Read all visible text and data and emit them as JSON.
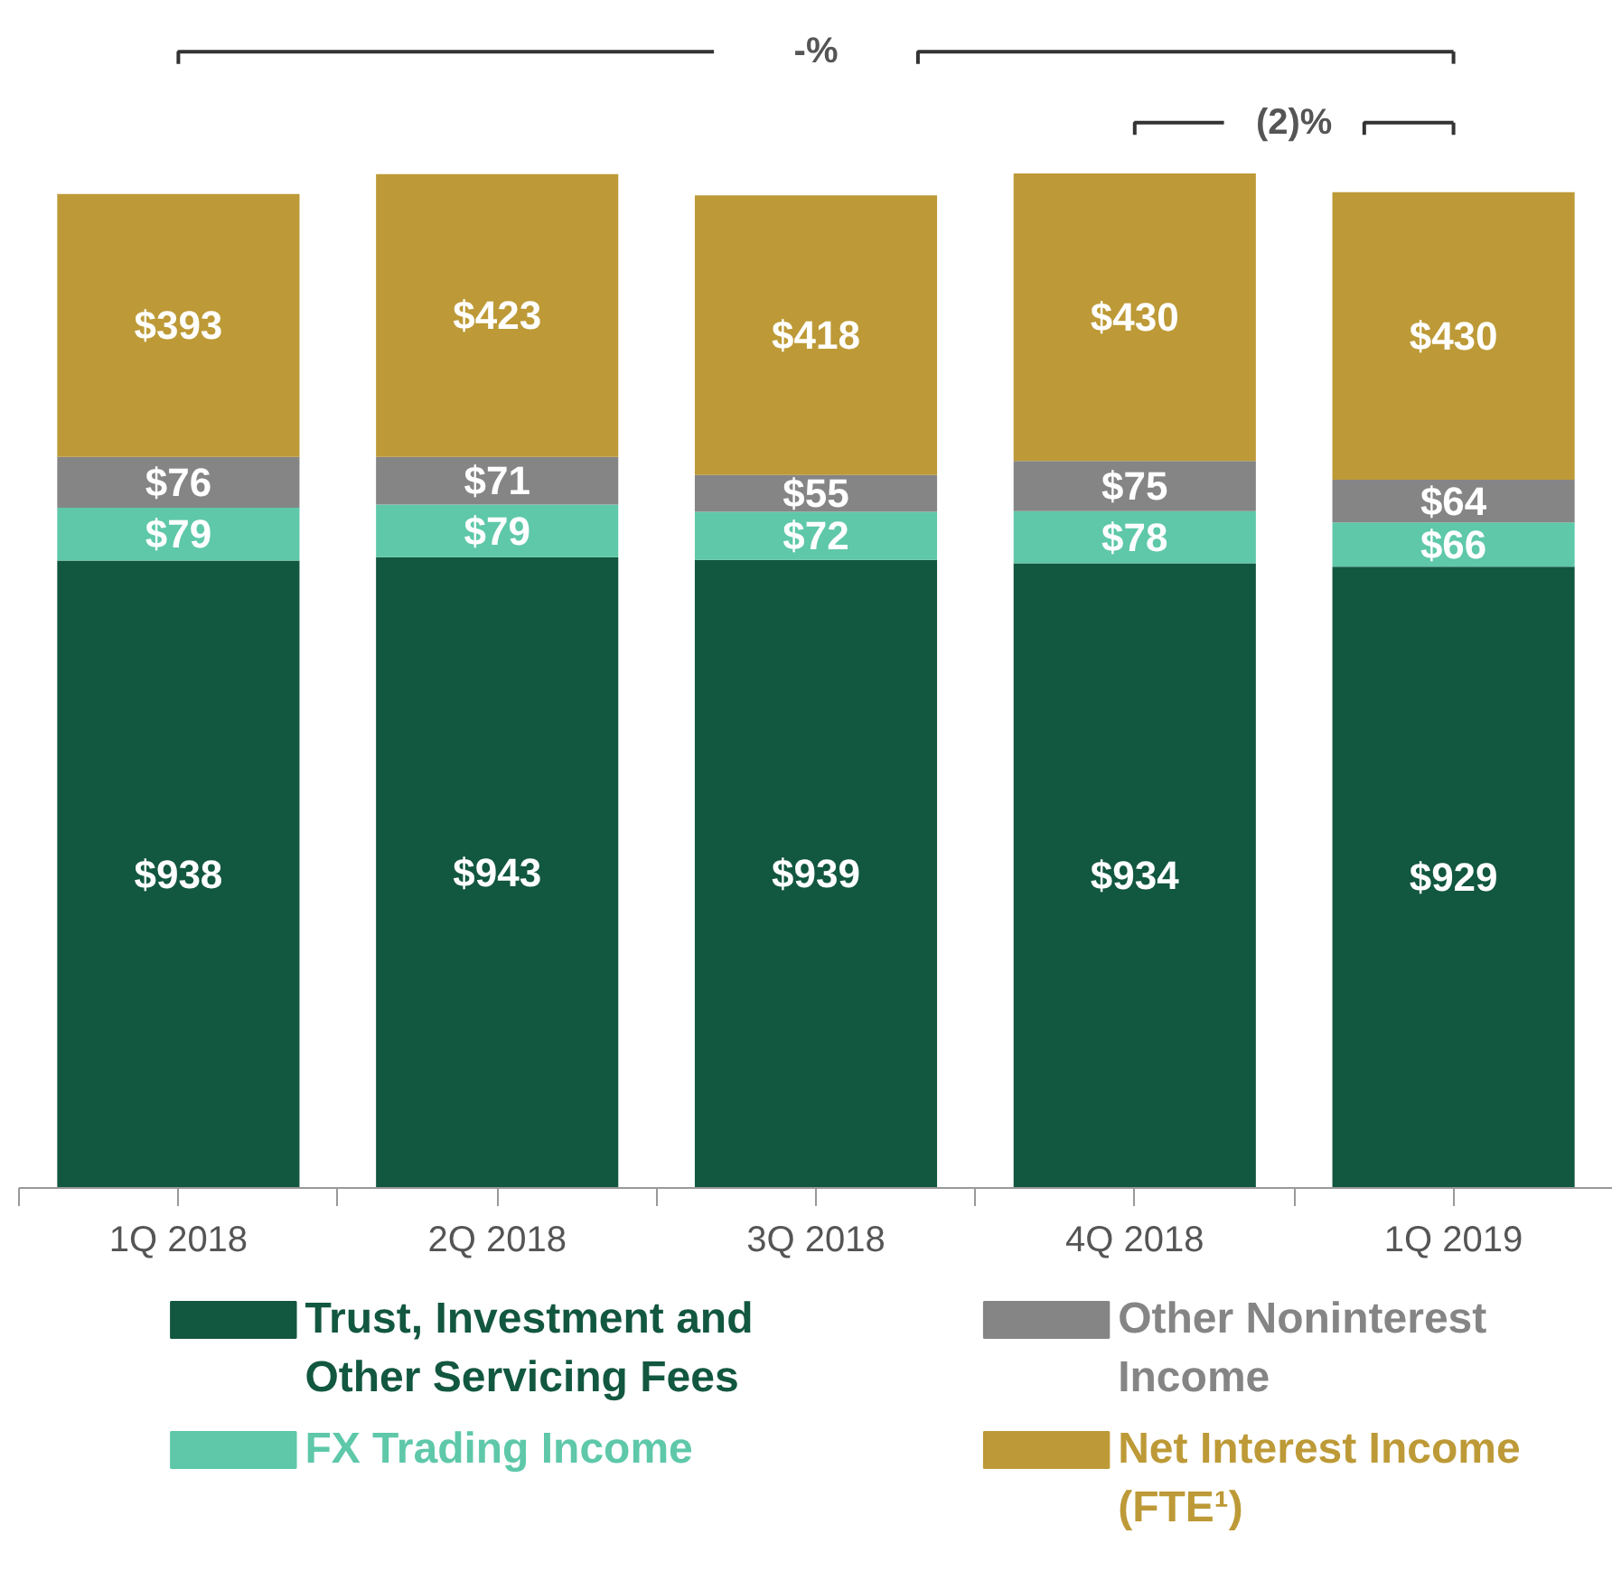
{
  "chart_data": {
    "type": "bar",
    "stacked": true,
    "legend": "bottom",
    "grid": false,
    "categories": [
      "1Q 2018",
      "2Q 2018",
      "3Q 2018",
      "4Q 2018",
      "1Q 2019"
    ],
    "series": [
      {
        "name": "Trust, Investment and Other Servicing Fees",
        "color": "#12573f",
        "values": [
          938,
          943,
          939,
          934,
          929
        ],
        "value_labels": [
          "$938",
          "$943",
          "$939",
          "$934",
          "$929"
        ]
      },
      {
        "name": "FX Trading Income",
        "color": "#5ec8a9",
        "values": [
          79,
          79,
          72,
          78,
          66
        ],
        "value_labels": [
          "$79",
          "$79",
          "$72",
          "$78",
          "$66"
        ]
      },
      {
        "name": "Other Noninterest Income",
        "color": "#858585",
        "values": [
          76,
          71,
          55,
          75,
          64
        ],
        "value_labels": [
          "$76",
          "$71",
          "$55",
          "$75",
          "$64"
        ]
      },
      {
        "name": "Net Interest Income (FTE¹)",
        "color": "#bd9a37",
        "values": [
          393,
          423,
          418,
          430,
          430
        ],
        "value_labels": [
          "$393",
          "$423",
          "$418",
          "$430",
          "$430"
        ]
      }
    ],
    "annotations": [
      "-%",
      "(2)%"
    ]
  }
}
